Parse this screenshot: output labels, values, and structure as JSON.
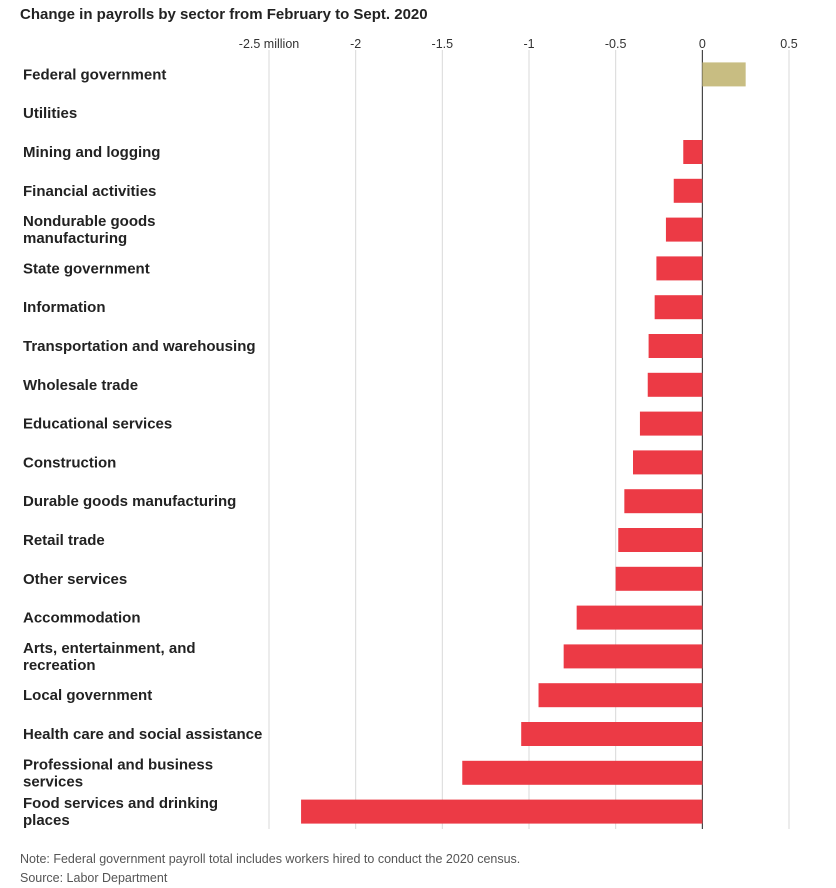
{
  "chart_data": {
    "type": "bar",
    "orientation": "horizontal",
    "title": "Change in payrolls by sector from February to Sept. 2020",
    "xlim": [
      -2.5,
      0.5
    ],
    "xticks": [
      -2.5,
      -2,
      -1.5,
      -1,
      -0.5,
      0,
      0.5
    ],
    "xtick_labels": [
      "-2.5 million",
      "-2",
      "-1.5",
      "-1",
      "-0.5",
      "0",
      "0.5"
    ],
    "grid": true,
    "colors": {
      "positive": "#c8bd82",
      "negative": "#ec3a45"
    },
    "categories": [
      [
        "Federal government"
      ],
      [
        "Utilities"
      ],
      [
        "Mining and logging"
      ],
      [
        "Financial activities"
      ],
      [
        "Nondurable goods",
        "manufacturing"
      ],
      [
        "State government"
      ],
      [
        "Information"
      ],
      [
        "Transportation and warehousing"
      ],
      [
        "Wholesale trade"
      ],
      [
        "Educational services"
      ],
      [
        "Construction"
      ],
      [
        "Durable goods manufacturing"
      ],
      [
        "Retail trade"
      ],
      [
        "Other services"
      ],
      [
        "Accommodation"
      ],
      [
        "Arts, entertainment, and",
        "recreation"
      ],
      [
        "Local government"
      ],
      [
        "Health care and social assistance"
      ],
      [
        "Professional and business",
        "services"
      ],
      [
        "Food services and drinking",
        "places"
      ]
    ],
    "values": [
      0.25,
      0.0,
      -0.11,
      -0.165,
      -0.21,
      -0.265,
      -0.275,
      -0.31,
      -0.315,
      -0.36,
      -0.4,
      -0.45,
      -0.485,
      -0.5,
      -0.725,
      -0.8,
      -0.945,
      -1.045,
      -1.385,
      -2.315
    ]
  },
  "notes": {
    "note": "Note: Federal government payroll total includes workers hired to conduct the 2020 census.",
    "source": "Source: Labor Department"
  }
}
